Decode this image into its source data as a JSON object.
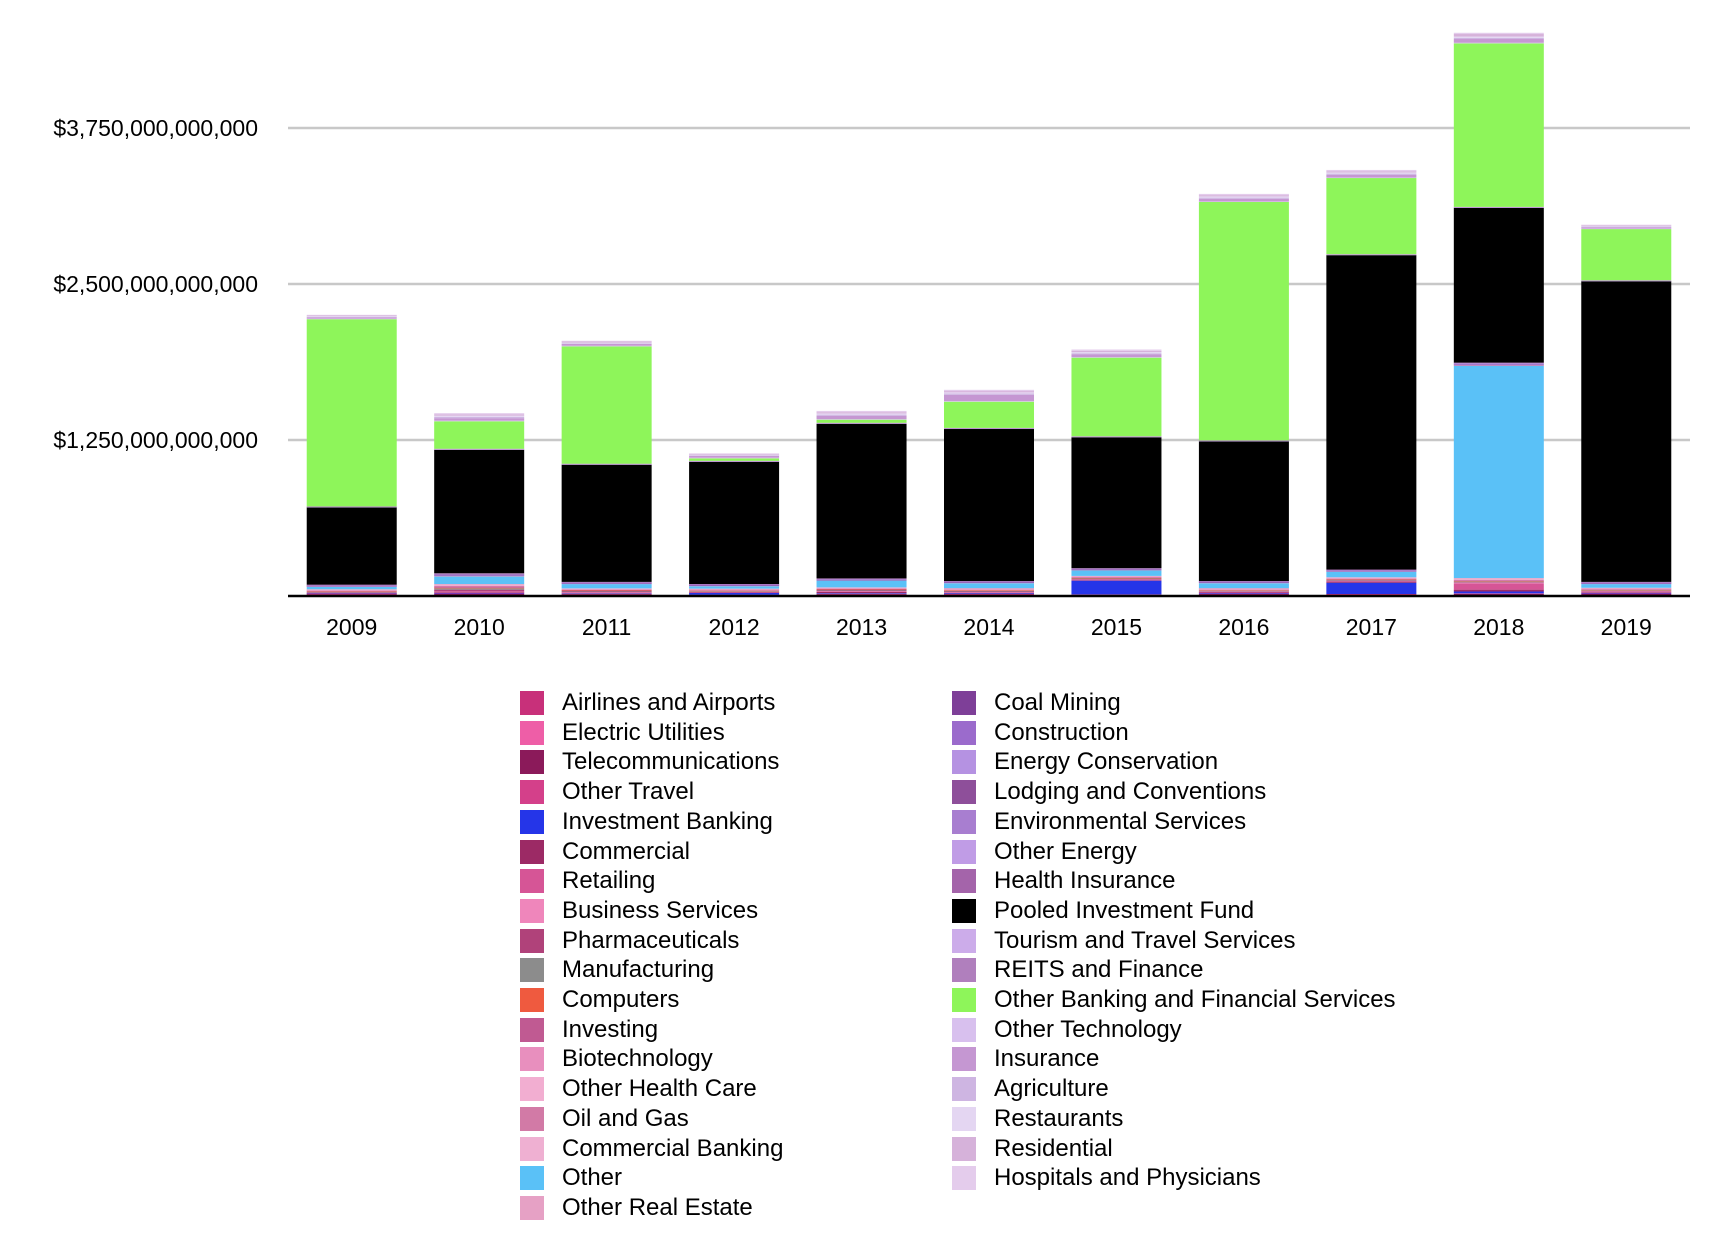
{
  "chart_data": {
    "type": "bar",
    "stacked": true,
    "title": "",
    "xlabel": "",
    "ylabel": "",
    "ylim": [
      0,
      4650000000000
    ],
    "yticks": [
      {
        "value": 1250000000000,
        "label": "$1,250,000,000,000"
      },
      {
        "value": 2500000000000,
        "label": "$2,500,000,000,000"
      },
      {
        "value": 3750000000000,
        "label": "$3,750,000,000,000"
      }
    ],
    "grid": true,
    "legend_position": "bottom",
    "categories": [
      "2009",
      "2010",
      "2011",
      "2012",
      "2013",
      "2014",
      "2015",
      "2016",
      "2017",
      "2018",
      "2019"
    ],
    "series": [
      {
        "name": "Airlines and Airports",
        "color": "#c8307a",
        "values": [
          2000000000,
          2000000000,
          2000000000,
          1000000000,
          2000000000,
          2000000000,
          2000000000,
          3000000000,
          2000000000,
          3000000000,
          2000000000
        ]
      },
      {
        "name": "Electric Utilities",
        "color": "#ee5ea7",
        "values": [
          3000000000,
          3000000000,
          3000000000,
          2000000000,
          3000000000,
          3000000000,
          3000000000,
          3000000000,
          3000000000,
          4000000000,
          3000000000
        ]
      },
      {
        "name": "Telecommunications",
        "color": "#8b1a5a",
        "values": [
          10000000000,
          12000000000,
          10000000000,
          5000000000,
          10000000000,
          8000000000,
          5000000000,
          10000000000,
          8000000000,
          10000000000,
          12000000000
        ]
      },
      {
        "name": "Other Travel",
        "color": "#d4408a",
        "values": [
          2000000000,
          3000000000,
          3000000000,
          2000000000,
          3000000000,
          3000000000,
          3000000000,
          3000000000,
          3000000000,
          4000000000,
          3000000000
        ]
      },
      {
        "name": "Investment Banking",
        "color": "#2535e8",
        "values": [
          3000000000,
          5000000000,
          4000000000,
          15000000000,
          5000000000,
          6000000000,
          110000000000,
          5000000000,
          90000000000,
          15000000000,
          5000000000
        ]
      },
      {
        "name": "Commercial",
        "color": "#9c2a65",
        "values": [
          3000000000,
          5000000000,
          5000000000,
          3000000000,
          10000000000,
          5000000000,
          4000000000,
          5000000000,
          10000000000,
          15000000000,
          5000000000
        ]
      },
      {
        "name": "Retailing",
        "color": "#d65596",
        "values": [
          2000000000,
          3000000000,
          3000000000,
          2000000000,
          3000000000,
          3000000000,
          3000000000,
          3000000000,
          3000000000,
          50000000000,
          5000000000
        ]
      },
      {
        "name": "Business Services",
        "color": "#ef86bb",
        "values": [
          2000000000,
          3000000000,
          3000000000,
          2000000000,
          3000000000,
          3000000000,
          3000000000,
          3000000000,
          3000000000,
          5000000000,
          3000000000
        ]
      },
      {
        "name": "Pharmaceuticals",
        "color": "#b0427a",
        "values": [
          2000000000,
          15000000000,
          3000000000,
          2000000000,
          5000000000,
          3000000000,
          3000000000,
          3000000000,
          3000000000,
          5000000000,
          3000000000
        ]
      },
      {
        "name": "Manufacturing",
        "color": "#8c8c8c",
        "values": [
          5000000000,
          10000000000,
          5000000000,
          5000000000,
          5000000000,
          5000000000,
          5000000000,
          5000000000,
          5000000000,
          5000000000,
          5000000000
        ]
      },
      {
        "name": "Computers",
        "color": "#ef5a3f",
        "values": [
          3000000000,
          5000000000,
          3000000000,
          3000000000,
          3000000000,
          5000000000,
          3000000000,
          3000000000,
          3000000000,
          3000000000,
          3000000000
        ]
      },
      {
        "name": "Investing",
        "color": "#c05a92",
        "values": [
          5000000000,
          10000000000,
          5000000000,
          5000000000,
          5000000000,
          5000000000,
          5000000000,
          5000000000,
          5000000000,
          5000000000,
          5000000000
        ]
      },
      {
        "name": "Biotechnology",
        "color": "#e88fbe",
        "values": [
          3000000000,
          5000000000,
          3000000000,
          3000000000,
          3000000000,
          3000000000,
          3000000000,
          3000000000,
          3000000000,
          5000000000,
          3000000000
        ]
      },
      {
        "name": "Other Health Care",
        "color": "#f2aed1",
        "values": [
          3000000000,
          5000000000,
          3000000000,
          3000000000,
          3000000000,
          3000000000,
          3000000000,
          3000000000,
          3000000000,
          5000000000,
          3000000000
        ]
      },
      {
        "name": "Oil and Gas",
        "color": "#d27aa6",
        "values": [
          3000000000,
          5000000000,
          3000000000,
          3000000000,
          3000000000,
          3000000000,
          3000000000,
          3000000000,
          3000000000,
          5000000000,
          3000000000
        ]
      },
      {
        "name": "Commercial Banking",
        "color": "#efb0d2",
        "values": [
          3000000000,
          5000000000,
          3000000000,
          3000000000,
          3000000000,
          3000000000,
          3000000000,
          3000000000,
          3000000000,
          5000000000,
          3000000000
        ]
      },
      {
        "name": "Other",
        "color": "#5ac1f7",
        "values": [
          20000000000,
          60000000000,
          35000000000,
          20000000000,
          55000000000,
          40000000000,
          45000000000,
          40000000000,
          45000000000,
          1700000000000,
          30000000000
        ]
      },
      {
        "name": "Other Real Estate",
        "color": "#e6a1c5",
        "values": [
          3000000000,
          5000000000,
          3000000000,
          3000000000,
          3000000000,
          3000000000,
          3000000000,
          3000000000,
          3000000000,
          5000000000,
          3000000000
        ]
      },
      {
        "name": "Coal Mining",
        "color": "#7e3f98",
        "values": [
          2000000000,
          3000000000,
          2000000000,
          2000000000,
          2000000000,
          2000000000,
          2000000000,
          2000000000,
          2000000000,
          3000000000,
          2000000000
        ]
      },
      {
        "name": "Construction",
        "color": "#9b6bcc",
        "values": [
          2000000000,
          3000000000,
          2000000000,
          2000000000,
          2000000000,
          2000000000,
          2000000000,
          2000000000,
          2000000000,
          3000000000,
          2000000000
        ]
      },
      {
        "name": "Energy Conservation",
        "color": "#b592e2",
        "values": [
          2000000000,
          3000000000,
          2000000000,
          2000000000,
          2000000000,
          2000000000,
          2000000000,
          2000000000,
          2000000000,
          3000000000,
          2000000000
        ]
      },
      {
        "name": "Lodging and Conventions",
        "color": "#8e4f9a",
        "values": [
          2000000000,
          3000000000,
          2000000000,
          2000000000,
          2000000000,
          2000000000,
          2000000000,
          2000000000,
          2000000000,
          3000000000,
          2000000000
        ]
      },
      {
        "name": "Environmental Services",
        "color": "#a87ed0",
        "values": [
          2000000000,
          3000000000,
          2000000000,
          2000000000,
          2000000000,
          2000000000,
          2000000000,
          2000000000,
          2000000000,
          3000000000,
          2000000000
        ]
      },
      {
        "name": "Other Energy",
        "color": "#c09ce6",
        "values": [
          2000000000,
          3000000000,
          2000000000,
          2000000000,
          2000000000,
          2000000000,
          2000000000,
          2000000000,
          2000000000,
          3000000000,
          2000000000
        ]
      },
      {
        "name": "Health Insurance",
        "color": "#a464aa",
        "values": [
          2000000000,
          3000000000,
          2000000000,
          2000000000,
          2000000000,
          2000000000,
          2000000000,
          2000000000,
          2000000000,
          3000000000,
          2000000000
        ]
      },
      {
        "name": "Pooled Investment Fund",
        "color": "#000000",
        "values": [
          620000000000,
          990000000000,
          940000000000,
          980000000000,
          1240000000000,
          1220000000000,
          1050000000000,
          1120000000000,
          2520000000000,
          1240000000000,
          2410000000000
        ]
      },
      {
        "name": "Tourism and Travel Services",
        "color": "#ccacea",
        "values": [
          2000000000,
          3000000000,
          2000000000,
          2000000000,
          2000000000,
          2000000000,
          2000000000,
          2000000000,
          2000000000,
          3000000000,
          2000000000
        ]
      },
      {
        "name": "REITS and Finance",
        "color": "#b07fbd",
        "values": [
          5000000000,
          5000000000,
          5000000000,
          5000000000,
          5000000000,
          5000000000,
          5000000000,
          5000000000,
          5000000000,
          5000000000,
          5000000000
        ]
      },
      {
        "name": "Other Banking and Financial Services",
        "color": "#8ef55a",
        "values": [
          1500000000000,
          220000000000,
          940000000000,
          20000000000,
          25000000000,
          210000000000,
          630000000000,
          1910000000000,
          610000000000,
          1310000000000,
          410000000000
        ]
      },
      {
        "name": "Other Technology",
        "color": "#d8c0ee",
        "values": [
          5000000000,
          5000000000,
          5000000000,
          5000000000,
          5000000000,
          5000000000,
          5000000000,
          5000000000,
          5000000000,
          5000000000,
          5000000000
        ]
      },
      {
        "name": "Insurance",
        "color": "#c597d2",
        "values": [
          10000000000,
          20000000000,
          15000000000,
          15000000000,
          25000000000,
          50000000000,
          20000000000,
          20000000000,
          20000000000,
          30000000000,
          10000000000
        ]
      },
      {
        "name": "Agriculture",
        "color": "#ceb5e2",
        "values": [
          5000000000,
          10000000000,
          5000000000,
          5000000000,
          10000000000,
          10000000000,
          10000000000,
          10000000000,
          10000000000,
          10000000000,
          5000000000
        ]
      },
      {
        "name": "Restaurants",
        "color": "#e4d6f2",
        "values": [
          5000000000,
          10000000000,
          5000000000,
          5000000000,
          10000000000,
          10000000000,
          10000000000,
          10000000000,
          10000000000,
          10000000000,
          5000000000
        ]
      },
      {
        "name": "Residential",
        "color": "#d6b2da",
        "values": [
          5000000000,
          10000000000,
          10000000000,
          5000000000,
          10000000000,
          10000000000,
          10000000000,
          10000000000,
          10000000000,
          20000000000,
          5000000000
        ]
      },
      {
        "name": "Hospitals and Physicians",
        "color": "#e4ccec",
        "values": [
          5000000000,
          10000000000,
          5000000000,
          5000000000,
          10000000000,
          10000000000,
          10000000000,
          10000000000,
          10000000000,
          10000000000,
          5000000000
        ]
      }
    ]
  }
}
